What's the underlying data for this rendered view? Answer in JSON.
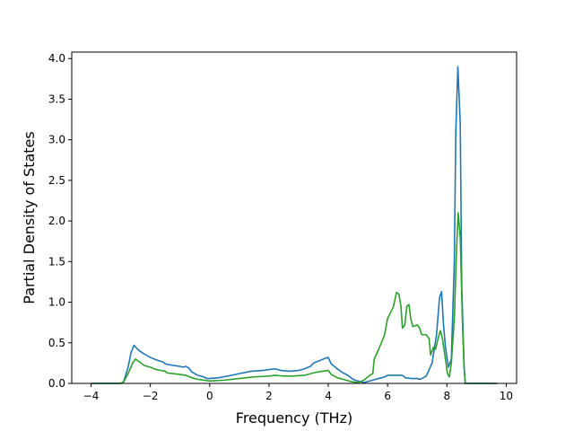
{
  "chart_data": {
    "type": "line",
    "title": "",
    "xlabel": "Frequency (THz)",
    "ylabel": "Partial Density of States",
    "xlim": [
      -4.65,
      10.35
    ],
    "ylim": [
      0,
      4.08
    ],
    "xticks": [
      -4,
      -2,
      0,
      2,
      4,
      6,
      8,
      10
    ],
    "xtick_labels": [
      "−4",
      "−2",
      "0",
      "2",
      "4",
      "6",
      "8",
      "10"
    ],
    "yticks": [
      0,
      0.5,
      1,
      1.5,
      2,
      2.5,
      3,
      3.5,
      4
    ],
    "ytick_labels": [
      "0.0",
      "0.5",
      "1.0",
      "1.5",
      "2.0",
      "2.5",
      "3.0",
      "3.5",
      "4.0"
    ],
    "grid": false,
    "legend": "none",
    "series": [
      {
        "color": "#1f77b4",
        "points": [
          [
            -4.0,
            0.0
          ],
          [
            -3.0,
            0.0
          ],
          [
            -2.9,
            0.02
          ],
          [
            -2.75,
            0.2
          ],
          [
            -2.65,
            0.38
          ],
          [
            -2.55,
            0.47
          ],
          [
            -2.4,
            0.41
          ],
          [
            -2.2,
            0.36
          ],
          [
            -2.0,
            0.32
          ],
          [
            -1.8,
            0.29
          ],
          [
            -1.55,
            0.26
          ],
          [
            -1.5,
            0.24
          ],
          [
            -1.2,
            0.22
          ],
          [
            -1.0,
            0.21
          ],
          [
            -0.9,
            0.2
          ],
          [
            -0.8,
            0.21
          ],
          [
            -0.7,
            0.19
          ],
          [
            -0.6,
            0.14
          ],
          [
            -0.4,
            0.1
          ],
          [
            -0.2,
            0.08
          ],
          [
            -0.1,
            0.06
          ],
          [
            0.0,
            0.06
          ],
          [
            0.3,
            0.07
          ],
          [
            0.6,
            0.09
          ],
          [
            1.0,
            0.12
          ],
          [
            1.4,
            0.15
          ],
          [
            1.8,
            0.16
          ],
          [
            2.0,
            0.17
          ],
          [
            2.2,
            0.18
          ],
          [
            2.4,
            0.16
          ],
          [
            2.7,
            0.15
          ],
          [
            3.0,
            0.16
          ],
          [
            3.2,
            0.18
          ],
          [
            3.4,
            0.21
          ],
          [
            3.5,
            0.25
          ],
          [
            3.7,
            0.28
          ],
          [
            3.9,
            0.31
          ],
          [
            4.0,
            0.32
          ],
          [
            4.1,
            0.24
          ],
          [
            4.3,
            0.18
          ],
          [
            4.5,
            0.13
          ],
          [
            4.7,
            0.09
          ],
          [
            4.8,
            0.06
          ],
          [
            4.9,
            0.04
          ],
          [
            5.0,
            0.03
          ],
          [
            5.1,
            0.02
          ],
          [
            5.2,
            0.01
          ],
          [
            5.3,
            0.02
          ],
          [
            5.5,
            0.04
          ],
          [
            5.7,
            0.06
          ],
          [
            5.9,
            0.08
          ],
          [
            6.0,
            0.1
          ],
          [
            6.2,
            0.1
          ],
          [
            6.5,
            0.1
          ],
          [
            6.6,
            0.07
          ],
          [
            6.8,
            0.06
          ],
          [
            7.0,
            0.06
          ],
          [
            7.1,
            0.05
          ],
          [
            7.3,
            0.09
          ],
          [
            7.5,
            0.25
          ],
          [
            7.65,
            0.6
          ],
          [
            7.75,
            1.05
          ],
          [
            7.82,
            1.13
          ],
          [
            7.88,
            0.75
          ],
          [
            7.95,
            0.45
          ],
          [
            8.05,
            0.2
          ],
          [
            8.15,
            0.3
          ],
          [
            8.25,
            1.5
          ],
          [
            8.3,
            3.1
          ],
          [
            8.37,
            3.9
          ],
          [
            8.45,
            3.2
          ],
          [
            8.5,
            1.2
          ],
          [
            8.58,
            0.2
          ],
          [
            8.62,
            0.0
          ],
          [
            8.7,
            0.0
          ],
          [
            9.7,
            0.0
          ]
        ]
      },
      {
        "color": "#2ca02c",
        "points": [
          [
            -4.0,
            0.0
          ],
          [
            -3.0,
            0.0
          ],
          [
            -2.9,
            0.02
          ],
          [
            -2.75,
            0.12
          ],
          [
            -2.6,
            0.25
          ],
          [
            -2.5,
            0.3
          ],
          [
            -2.35,
            0.26
          ],
          [
            -2.2,
            0.22
          ],
          [
            -2.0,
            0.2
          ],
          [
            -1.8,
            0.17
          ],
          [
            -1.5,
            0.15
          ],
          [
            -1.45,
            0.13
          ],
          [
            -1.2,
            0.12
          ],
          [
            -1.0,
            0.11
          ],
          [
            -0.8,
            0.1
          ],
          [
            -0.6,
            0.07
          ],
          [
            -0.4,
            0.05
          ],
          [
            -0.2,
            0.04
          ],
          [
            0.0,
            0.03
          ],
          [
            0.5,
            0.04
          ],
          [
            1.0,
            0.06
          ],
          [
            1.5,
            0.08
          ],
          [
            2.0,
            0.09
          ],
          [
            2.2,
            0.1
          ],
          [
            2.5,
            0.09
          ],
          [
            2.8,
            0.09
          ],
          [
            3.2,
            0.1
          ],
          [
            3.5,
            0.13
          ],
          [
            3.8,
            0.15
          ],
          [
            4.0,
            0.16
          ],
          [
            4.1,
            0.11
          ],
          [
            4.3,
            0.07
          ],
          [
            4.6,
            0.04
          ],
          [
            4.8,
            0.02
          ],
          [
            5.0,
            0.01
          ],
          [
            5.2,
            0.04
          ],
          [
            5.4,
            0.1
          ],
          [
            5.5,
            0.12
          ],
          [
            5.55,
            0.3
          ],
          [
            5.7,
            0.42
          ],
          [
            5.9,
            0.6
          ],
          [
            6.0,
            0.8
          ],
          [
            6.1,
            0.87
          ],
          [
            6.2,
            0.95
          ],
          [
            6.3,
            1.12
          ],
          [
            6.38,
            1.1
          ],
          [
            6.45,
            0.95
          ],
          [
            6.5,
            0.68
          ],
          [
            6.58,
            0.72
          ],
          [
            6.65,
            0.95
          ],
          [
            6.72,
            0.97
          ],
          [
            6.78,
            0.8
          ],
          [
            6.85,
            0.7
          ],
          [
            7.0,
            0.72
          ],
          [
            7.08,
            0.68
          ],
          [
            7.15,
            0.6
          ],
          [
            7.3,
            0.6
          ],
          [
            7.4,
            0.55
          ],
          [
            7.45,
            0.35
          ],
          [
            7.55,
            0.45
          ],
          [
            7.62,
            0.42
          ],
          [
            7.7,
            0.55
          ],
          [
            7.78,
            0.65
          ],
          [
            7.85,
            0.55
          ],
          [
            7.95,
            0.3
          ],
          [
            8.02,
            0.12
          ],
          [
            8.08,
            0.08
          ],
          [
            8.15,
            0.25
          ],
          [
            8.25,
            0.8
          ],
          [
            8.32,
            1.6
          ],
          [
            8.38,
            2.1
          ],
          [
            8.45,
            1.8
          ],
          [
            8.52,
            0.8
          ],
          [
            8.58,
            0.2
          ],
          [
            8.62,
            0.0
          ],
          [
            8.7,
            0.0
          ],
          [
            9.7,
            0.0
          ]
        ]
      }
    ]
  }
}
